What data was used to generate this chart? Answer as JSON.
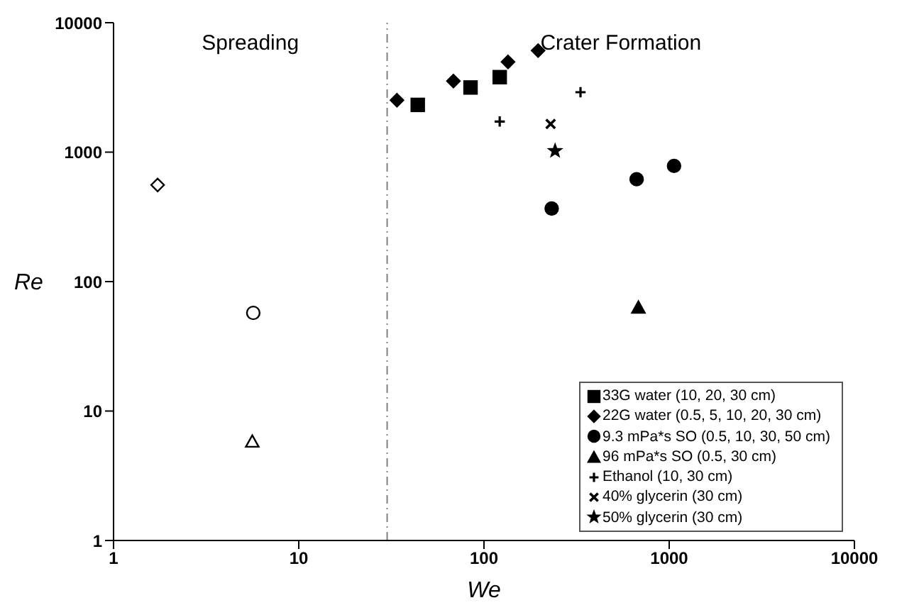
{
  "chart_data": {
    "type": "scatter",
    "xlabel": "We",
    "ylabel": "Re",
    "log": "xy",
    "xlim": [
      1,
      10000
    ],
    "xticks": [
      1,
      10,
      100,
      1000,
      10000
    ],
    "ylim": [
      1,
      10000
    ],
    "yticks": [
      1,
      10,
      100,
      1000,
      10000
    ],
    "legend": "bottom right",
    "annotations": [
      "Spreading",
      "Crater Formation"
    ],
    "ref_lines": [
      {
        "axis": "x",
        "value": 30,
        "label": null,
        "color": "#808080",
        "line_style": "dashdot"
      }
    ],
    "series": [
      {
        "name": "33G water (10, 20, 30 cm)",
        "color": "#000000",
        "marker": "square",
        "x": [
          43.9,
          84.6,
          121.6
        ],
        "values": [
          2317,
          3159,
          3796
        ]
      },
      {
        "name": "22G water (0.5, 5, 10, 20, 30 cm)",
        "color": "#000000",
        "marker": "diamond",
        "x": [
          33.9,
          68.4,
          134.8,
          196
        ],
        "values": [
          2518,
          3540,
          4976,
          6086
        ]
      },
      {
        "name": "9.3 mPa*s SO (0.5, 10, 30, 50 cm)",
        "color": "#000000",
        "marker": "circle",
        "x": [
          232,
          667,
          1062
        ],
        "values": [
          367,
          618,
          783
        ]
      },
      {
        "name": "96 mPa*s SO (0.5, 30 cm)",
        "color": "#000000",
        "marker": "triangle",
        "x": [
          682
        ],
        "values": [
          62.9
        ]
      },
      {
        "name": "Ethanol (10, 30 cm)",
        "color": "#000000",
        "marker": "cross",
        "x": [
          121.6,
          332
        ],
        "values": [
          1725,
          2905
        ]
      },
      {
        "name": "40% glycerin (30 cm)",
        "color": "#000000",
        "marker": "x",
        "x": [
          229
        ],
        "values": [
          1652
        ]
      },
      {
        "name": "50% glycerin (30 cm)",
        "color": "#000000",
        "marker": "star",
        "x": [
          242
        ],
        "values": [
          1023
        ]
      },
      {
        "color": "#ffffff",
        "marker": "diamond",
        "x": [
          1.73
        ],
        "values": [
          558
        ]
      },
      {
        "color": "#ffffff",
        "marker": "circle",
        "x": [
          5.68
        ],
        "values": [
          57.3
        ]
      },
      {
        "color": "#ffffff",
        "marker": "triangle",
        "x": [
          5.61
        ],
        "values": [
          5.8
        ]
      }
    ]
  }
}
